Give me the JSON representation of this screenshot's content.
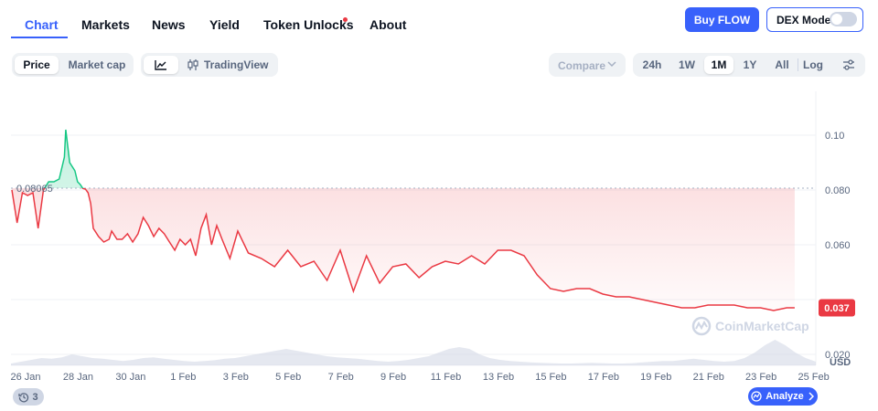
{
  "nav": {
    "tabs": [
      {
        "label": "Chart",
        "active": true
      },
      {
        "label": "Markets"
      },
      {
        "label": "News"
      },
      {
        "label": "Yield"
      },
      {
        "label": "Token Unlocks",
        "notification_dot": true
      },
      {
        "label": "About"
      }
    ],
    "buy_button": "Buy FLOW",
    "dex_mode": {
      "label": "DEX Mode",
      "enabled": false
    }
  },
  "toolbar": {
    "type_toggle": [
      {
        "label": "Price",
        "selected": true
      },
      {
        "label": "Market cap",
        "selected": false
      }
    ],
    "chart_style": {
      "line_icon": "line-chart-icon",
      "candle_icon": "candlestick-icon",
      "tradingview_label": "TradingView",
      "selected": "line"
    },
    "compare_label": "Compare",
    "ranges": [
      {
        "label": "24h"
      },
      {
        "label": "1W"
      },
      {
        "label": "1M",
        "selected": true
      },
      {
        "label": "1Y"
      },
      {
        "label": "All"
      }
    ],
    "log_label": "Log",
    "settings_icon": "sliders-icon"
  },
  "chart_data": {
    "type": "line",
    "x_tick_labels": [
      "26 Jan",
      "28 Jan",
      "30 Jan",
      "1 Feb",
      "3 Feb",
      "5 Feb",
      "7 Feb",
      "9 Feb",
      "11 Feb",
      "13 Feb",
      "15 Feb",
      "17 Feb",
      "19 Feb",
      "21 Feb",
      "23 Feb",
      "25 Feb"
    ],
    "y_tick_labels": [
      "0.10",
      "0.080",
      "0.060",
      "0.020"
    ],
    "y_axis_unit": "USD",
    "ylim": [
      0.016,
      0.116
    ],
    "baseline": {
      "label": "0.08065",
      "value": 0.08065
    },
    "current_price": {
      "label": "0.037",
      "value": 0.037
    },
    "colors": {
      "up": "#16c784",
      "down": "#ea3943"
    },
    "watermark": "CoinMarketCap",
    "series": [
      {
        "x": [
          0,
          0.2,
          0.4,
          0.6,
          0.8,
          1,
          1.2,
          1.4,
          1.6,
          1.8,
          2,
          2.05,
          2.2,
          2.4,
          2.5,
          2.6,
          2.7,
          2.8,
          2.9,
          3,
          3.1,
          3.3,
          3.5,
          3.7,
          3.8,
          4,
          4.2,
          4.4,
          4.6,
          4.8,
          5,
          5.2,
          5.4,
          5.6,
          5.8,
          6,
          6.2,
          6.4,
          6.6,
          6.8,
          7,
          7.2,
          7.4,
          7.6,
          7.8,
          8,
          8.3,
          8.6,
          9,
          9.5,
          10,
          10.5,
          11,
          11.5,
          12,
          12.5,
          13,
          13.5,
          14,
          14.5,
          15,
          15.5,
          16,
          16.5,
          17,
          17.5,
          18,
          18.5,
          19,
          19.5,
          20,
          20.5,
          21,
          21.5,
          22,
          22.5,
          23,
          23.5,
          24,
          24.5,
          25,
          25.5,
          26,
          26.5,
          27,
          27.5,
          28,
          28.5,
          29,
          29.5,
          29.8
        ],
        "y": [
          0.08,
          0.068,
          0.079,
          0.078,
          0.079,
          0.066,
          0.08,
          0.083,
          0.083,
          0.084,
          0.092,
          0.102,
          0.09,
          0.087,
          0.083,
          0.082,
          0.0806,
          0.0803,
          0.079,
          0.075,
          0.066,
          0.063,
          0.061,
          0.062,
          0.065,
          0.062,
          0.062,
          0.064,
          0.061,
          0.064,
          0.07,
          0.067,
          0.063,
          0.066,
          0.064,
          0.061,
          0.058,
          0.062,
          0.06,
          0.062,
          0.056,
          0.066,
          0.071,
          0.06,
          0.067,
          0.062,
          0.055,
          0.065,
          0.057,
          0.055,
          0.052,
          0.058,
          0.052,
          0.054,
          0.047,
          0.058,
          0.043,
          0.056,
          0.046,
          0.052,
          0.053,
          0.048,
          0.052,
          0.054,
          0.053,
          0.056,
          0.053,
          0.058,
          0.058,
          0.056,
          0.049,
          0.044,
          0.043,
          0.044,
          0.044,
          0.042,
          0.041,
          0.041,
          0.04,
          0.039,
          0.038,
          0.037,
          0.037,
          0.038,
          0.038,
          0.038,
          0.037,
          0.037,
          0.036,
          0.037,
          0.037
        ]
      }
    ],
    "volume": [
      0.05,
      0.1,
      0.15,
      0.2,
      0.18,
      0.22,
      0.3,
      0.25,
      0.2,
      0.18,
      0.15,
      0.12,
      0.15,
      0.2,
      0.22,
      0.18,
      0.15,
      0.12,
      0.1,
      0.12,
      0.14,
      0.18,
      0.2,
      0.25,
      0.3,
      0.35,
      0.4,
      0.45,
      0.4,
      0.35,
      0.3,
      0.25,
      0.22,
      0.2,
      0.18,
      0.15,
      0.12,
      0.1,
      0.12,
      0.15,
      0.2,
      0.25,
      0.35,
      0.45,
      0.5,
      0.45,
      0.3,
      0.2,
      0.15,
      0.12,
      0.1,
      0.08,
      0.07,
      0.06,
      0.05,
      0.05,
      0.06,
      0.07,
      0.06,
      0.05,
      0.05,
      0.06,
      0.08,
      0.1,
      0.12,
      0.12,
      0.15,
      0.18,
      0.15,
      0.12,
      0.1,
      0.12,
      0.2,
      0.35,
      0.55,
      0.7,
      0.55,
      0.35,
      0.2,
      0.1
    ]
  },
  "footer": {
    "history_badge": "3",
    "analyze_label": "Analyze"
  }
}
